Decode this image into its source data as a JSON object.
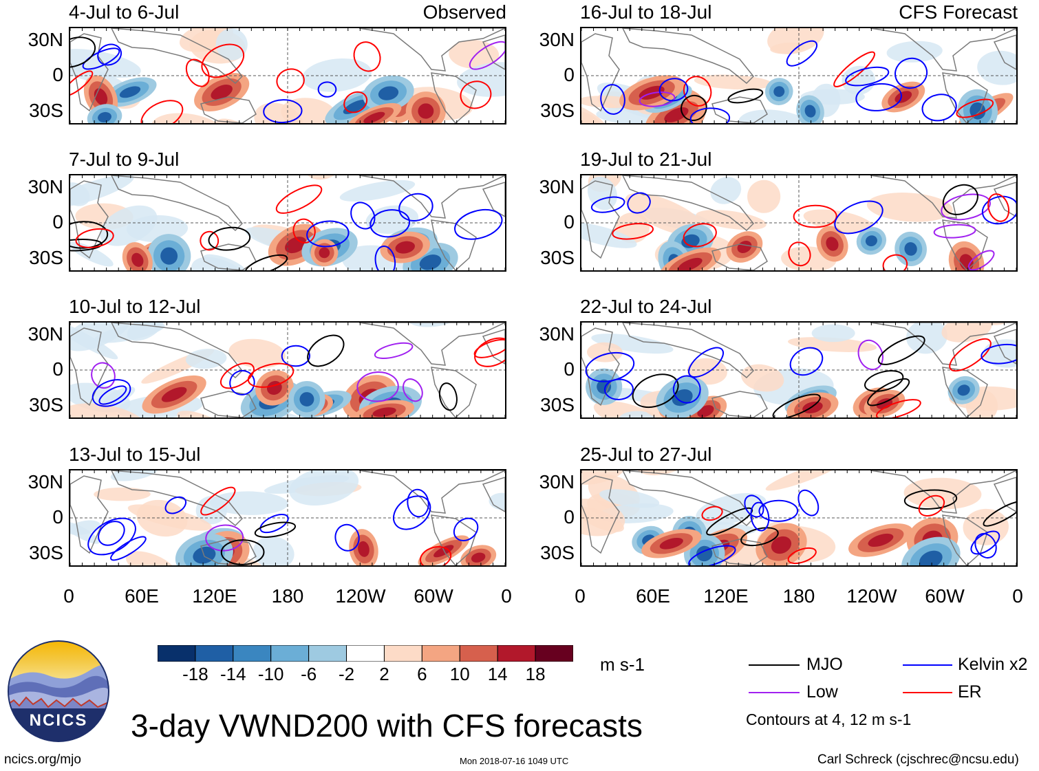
{
  "panels_left": [
    {
      "date": "4-Jul to 6-Jul",
      "label": "Observed"
    },
    {
      "date": "7-Jul to 9-Jul",
      "label": ""
    },
    {
      "date": "10-Jul to 12-Jul",
      "label": ""
    },
    {
      "date": "13-Jul to 15-Jul",
      "label": ""
    }
  ],
  "panels_right": [
    {
      "date": "16-Jul to 18-Jul",
      "label": "CFS Forecast"
    },
    {
      "date": "19-Jul to 21-Jul",
      "label": ""
    },
    {
      "date": "22-Jul to 24-Jul",
      "label": ""
    },
    {
      "date": "25-Jul to 27-Jul",
      "label": ""
    }
  ],
  "lat_labels": [
    "30N",
    "0",
    "30S"
  ],
  "lon_labels": [
    "0",
    "60E",
    "120E",
    "180",
    "120W",
    "60W",
    "0"
  ],
  "colorbar": {
    "ticks": [
      "-18",
      "-14",
      "-10",
      "-6",
      "-2",
      "2",
      "6",
      "10",
      "14",
      "18"
    ],
    "units": "m s-1",
    "colors": [
      "#08306b",
      "#1f5fa5",
      "#3a86c0",
      "#6baed6",
      "#9ecae1",
      "#d6e7f3",
      "#ffffff",
      "#fddbc7",
      "#f4a582",
      "#d6604d",
      "#b2182b",
      "#67001f"
    ]
  },
  "legend": {
    "mjo": "MJO",
    "low": "Low",
    "kelvin": "Kelvin x2",
    "er": "ER",
    "colors": {
      "mjo": "#000000",
      "low": "#a020f0",
      "kelvin": "#0000ff",
      "er": "#ff0000"
    },
    "contours": "Contours at 4, 12 m s-1"
  },
  "logo_text": "NCICS",
  "title": "3-day VWND200 with CFS forecasts",
  "url": "ncics.org/mjo",
  "timestamp": "Mon 2018-07-16 1049 UTC",
  "author": "Carl Schreck (cjschrec@ncsu.edu)"
}
